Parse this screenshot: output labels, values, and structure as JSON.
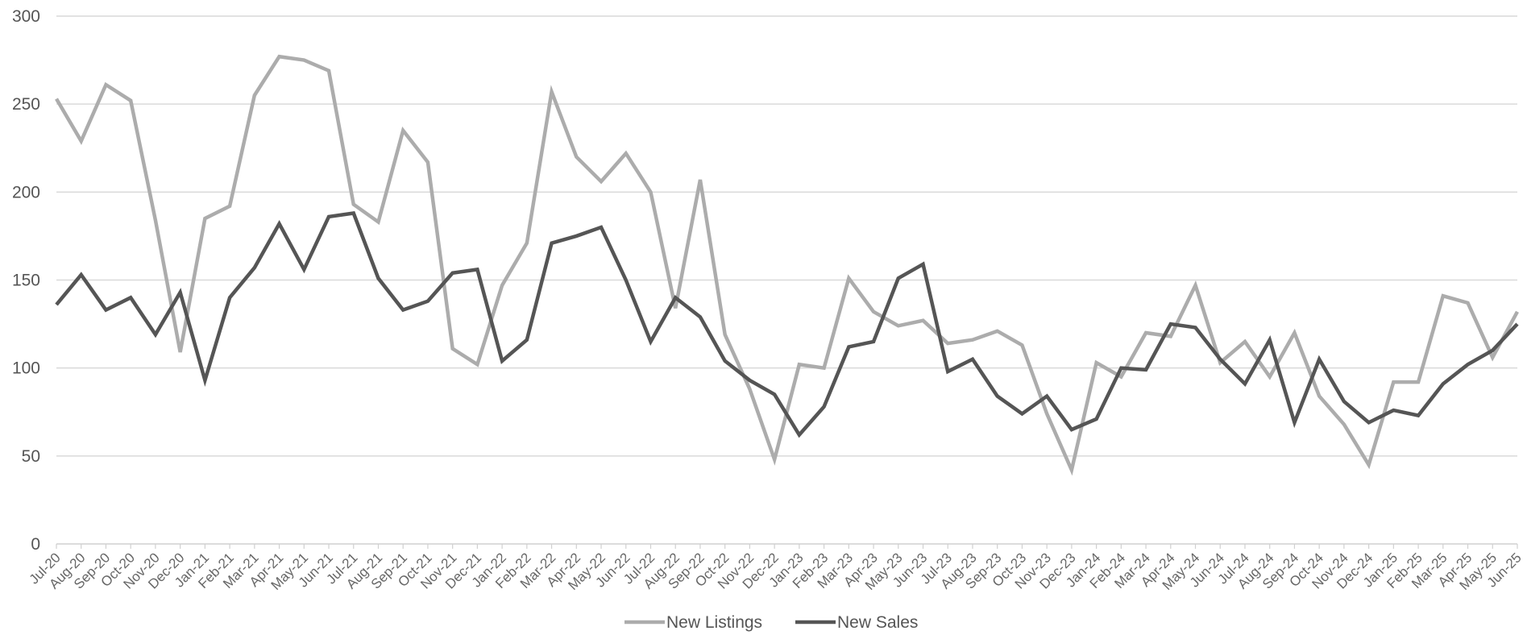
{
  "chart_data": {
    "type": "line",
    "title": "",
    "xlabel": "",
    "ylabel": "",
    "ylim": [
      0,
      300
    ],
    "yticks": [
      0,
      50,
      100,
      150,
      200,
      250,
      300
    ],
    "grid": true,
    "legend_position": "bottom-center",
    "x": [
      "Jul-20",
      "Aug-20",
      "Sep-20",
      "Oct-20",
      "Nov-20",
      "Dec-20",
      "Jan-21",
      "Feb-21",
      "Mar-21",
      "Apr-21",
      "May-21",
      "Jun-21",
      "Jul-21",
      "Aug-21",
      "Sep-21",
      "Oct-21",
      "Nov-21",
      "Dec-21",
      "Jan-22",
      "Feb-22",
      "Mar-22",
      "Apr-22",
      "May-22",
      "Jun-22",
      "Jul-22",
      "Aug-22",
      "Sep-22",
      "Oct-22",
      "Nov-22",
      "Dec-22",
      "Jan-23",
      "Feb-23",
      "Mar-23",
      "Apr-23",
      "May-23",
      "Jun-23",
      "Jul-23",
      "Aug-23",
      "Sep-23",
      "Oct-23",
      "Nov-23",
      "Dec-23",
      "Jan-24",
      "Feb-24",
      "Mar-24",
      "Apr-24",
      "May-24",
      "Jun-24",
      "Jul-24",
      "Aug-24",
      "Sep-24",
      "Oct-24",
      "Nov-24",
      "Dec-24",
      "Jan-25",
      "Feb-25",
      "Mar-25",
      "Apr-25",
      "May-25",
      "Jun-25"
    ],
    "series": [
      {
        "name": "New Listings",
        "color": "#acacac",
        "values": [
          253,
          229,
          261,
          252,
          184,
          109,
          185,
          192,
          255,
          277,
          275,
          269,
          193,
          183,
          235,
          217,
          111,
          102,
          147,
          171,
          257,
          220,
          206,
          222,
          200,
          134,
          207,
          119,
          88,
          48,
          102,
          100,
          151,
          132,
          124,
          127,
          114,
          116,
          121,
          113,
          74,
          42,
          103,
          95,
          120,
          118,
          147,
          103,
          115,
          95,
          120,
          84,
          68,
          45,
          92,
          92,
          141,
          137,
          106,
          132
        ]
      },
      {
        "name": "New Sales",
        "color": "#555555",
        "values": [
          136,
          153,
          133,
          140,
          119,
          143,
          93,
          140,
          157,
          182,
          156,
          186,
          188,
          151,
          133,
          138,
          154,
          156,
          104,
          116,
          171,
          175,
          180,
          150,
          115,
          140,
          129,
          104,
          93,
          85,
          62,
          78,
          112,
          115,
          151,
          159,
          98,
          105,
          84,
          74,
          84,
          65,
          71,
          100,
          99,
          125,
          123,
          105,
          91,
          116,
          69,
          105,
          81,
          69,
          76,
          73,
          91,
          102,
          110,
          125
        ]
      }
    ]
  }
}
